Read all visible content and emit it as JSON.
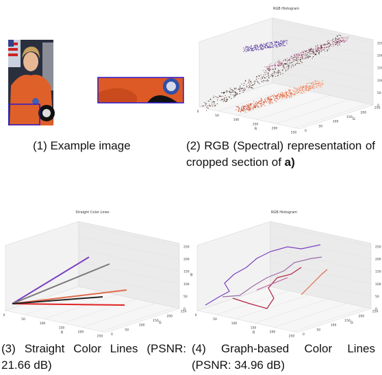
{
  "panels": [
    {
      "caption": "(1) Example image"
    },
    {
      "plot_title": "RGB Histogram",
      "caption": "(2) RGB (Spectral) representation of cropped section of",
      "caption_bold": "a)"
    },
    {
      "plot_title": "Straight Color Lines",
      "caption": "(3) Straight Color Lines (PSNR: 21.66 dB)"
    },
    {
      "plot_title": "RGB Histogram",
      "caption": "(4) Graph-based Color Lines (PSNR: 34.96 dB)"
    }
  ],
  "axes": {
    "r_label": "R",
    "g_label": "G",
    "b_label": "B",
    "r_ticks": [
      0,
      50,
      100,
      150,
      200,
      250
    ],
    "g_ticks": [
      0,
      50,
      100,
      150,
      200,
      250
    ],
    "b_ticks": [
      0,
      50,
      100,
      150,
      200,
      250
    ]
  }
}
